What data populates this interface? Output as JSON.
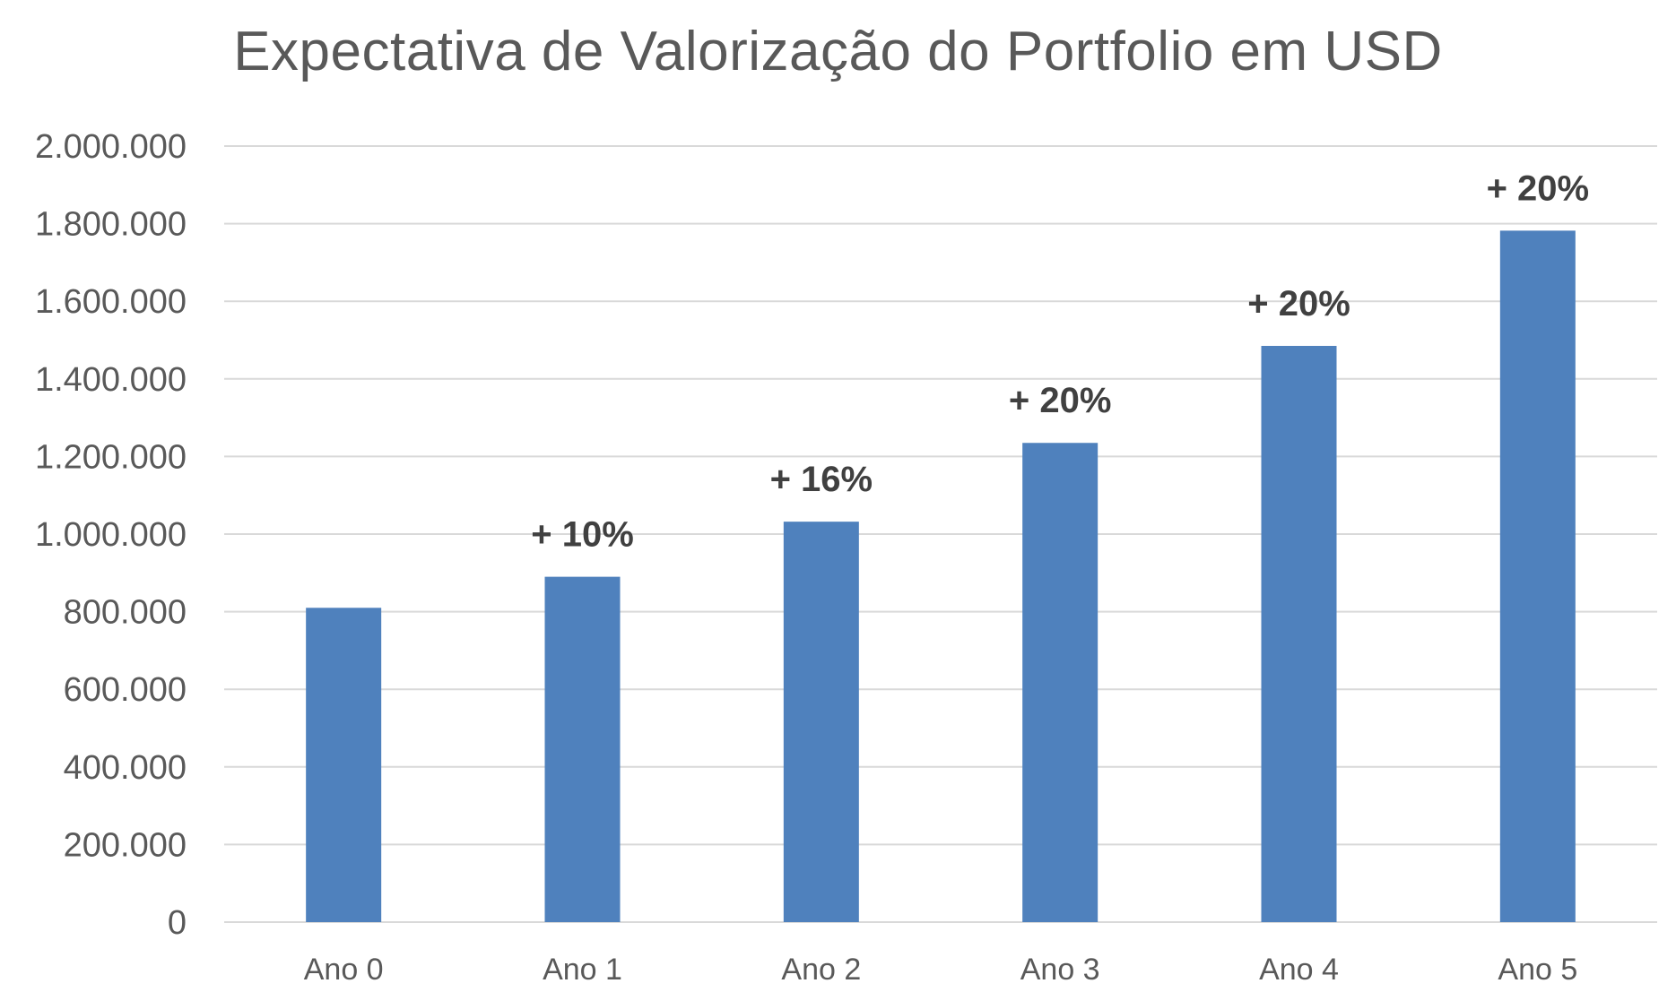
{
  "chart_data": {
    "type": "bar",
    "title": "Expectativa de Valorização do Portfolio em USD",
    "xlabel": "",
    "ylabel": "",
    "categories": [
      "Ano 0",
      "Ano 1",
      "Ano 2",
      "Ano 3",
      "Ano 4",
      "Ano 5"
    ],
    "values": [
      810000,
      890000,
      1032000,
      1235000,
      1485000,
      1782000
    ],
    "data_labels": [
      "",
      "+ 10%",
      "+ 16%",
      "+ 20%",
      "+ 20%",
      "+ 20%"
    ],
    "ylim": [
      0,
      2000000
    ],
    "y_ticks": [
      0,
      200000,
      400000,
      600000,
      800000,
      1000000,
      1200000,
      1400000,
      1600000,
      1800000,
      2000000
    ],
    "y_tick_labels": [
      "0",
      "200.000",
      "400.000",
      "600.000",
      "800.000",
      "1.000.000",
      "1.200.000",
      "1.400.000",
      "1.600.000",
      "1.800.000",
      "2.000.000"
    ],
    "grid": true,
    "legend": "none",
    "colors": {
      "bar": "#4f81bd",
      "grid": "#d9d9d9",
      "text": "#595959",
      "data_label": "#404040"
    }
  }
}
